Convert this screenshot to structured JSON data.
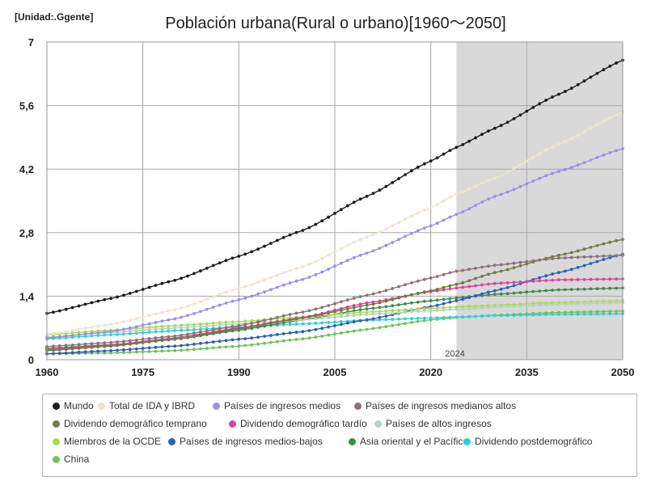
{
  "chart_data": {
    "type": "line",
    "title": "Población urbana(Rural o urbano)[1960〜2050]",
    "unit_label": "[Unidad:.Ggente]",
    "xlabel": "",
    "ylabel": "",
    "xlim": [
      1960,
      2050
    ],
    "ylim": [
      0,
      7
    ],
    "x_ticks": [
      1960,
      1975,
      1990,
      2005,
      2020,
      2035,
      2050
    ],
    "y_ticks": [
      0,
      1.4,
      2.8,
      4.2,
      5.6,
      7
    ],
    "y_tick_labels": [
      "0",
      "1,4",
      "2,8",
      "4,2",
      "5,6",
      "7"
    ],
    "grid": true,
    "projection_start": 2024,
    "projection_label": "2024",
    "legend_position": "bottom",
    "series": [
      {
        "name": "Mundo",
        "color": "#1f1a1c",
        "points": [
          [
            1960,
            1.02
          ],
          [
            1970,
            1.35
          ],
          [
            1980,
            1.75
          ],
          [
            1990,
            2.28
          ],
          [
            2000,
            2.85
          ],
          [
            2010,
            3.6
          ],
          [
            2020,
            4.38
          ],
          [
            2024,
            4.68
          ],
          [
            2030,
            5.1
          ],
          [
            2040,
            5.85
          ],
          [
            2050,
            6.6
          ]
        ]
      },
      {
        "name": "Total de IDA y IBRD",
        "color": "#efe3cf",
        "points": [
          [
            1960,
            0.56
          ],
          [
            1970,
            0.78
          ],
          [
            1980,
            1.1
          ],
          [
            1990,
            1.57
          ],
          [
            2000,
            2.05
          ],
          [
            2010,
            2.7
          ],
          [
            2020,
            3.35
          ],
          [
            2024,
            3.65
          ],
          [
            2030,
            4.0
          ],
          [
            2040,
            4.75
          ],
          [
            2050,
            5.45
          ]
        ]
      },
      {
        "name": "Países de ingresos medios",
        "color": "#9b8fe6",
        "points": [
          [
            1960,
            0.48
          ],
          [
            1970,
            0.62
          ],
          [
            1980,
            0.9
          ],
          [
            1990,
            1.32
          ],
          [
            2000,
            1.77
          ],
          [
            2010,
            2.35
          ],
          [
            2020,
            2.95
          ],
          [
            2024,
            3.2
          ],
          [
            2030,
            3.6
          ],
          [
            2040,
            4.15
          ],
          [
            2050,
            4.65
          ]
        ]
      },
      {
        "name": "Países de ingresos medianos altos",
        "color": "#8c7378",
        "points": [
          [
            1960,
            0.29
          ],
          [
            1970,
            0.38
          ],
          [
            1980,
            0.52
          ],
          [
            1990,
            0.75
          ],
          [
            2000,
            1.05
          ],
          [
            2010,
            1.42
          ],
          [
            2020,
            1.8
          ],
          [
            2024,
            1.95
          ],
          [
            2030,
            2.08
          ],
          [
            2040,
            2.24
          ],
          [
            2050,
            2.3
          ]
        ]
      },
      {
        "name": "Dividendo demográfico temprano",
        "color": "#6f7a45",
        "points": [
          [
            1960,
            0.2
          ],
          [
            1970,
            0.3
          ],
          [
            1980,
            0.45
          ],
          [
            1990,
            0.68
          ],
          [
            2000,
            0.92
          ],
          [
            2010,
            1.2
          ],
          [
            2020,
            1.52
          ],
          [
            2024,
            1.66
          ],
          [
            2030,
            1.92
          ],
          [
            2040,
            2.3
          ],
          [
            2050,
            2.65
          ]
        ]
      },
      {
        "name": "Dividendo demográfico tardío",
        "color": "#e0409c",
        "points": [
          [
            1960,
            0.22
          ],
          [
            1970,
            0.32
          ],
          [
            1980,
            0.48
          ],
          [
            1990,
            0.7
          ],
          [
            2000,
            0.93
          ],
          [
            2010,
            1.25
          ],
          [
            2020,
            1.5
          ],
          [
            2024,
            1.58
          ],
          [
            2030,
            1.68
          ],
          [
            2040,
            1.76
          ],
          [
            2050,
            1.78
          ]
        ]
      },
      {
        "name": "Países de altos ingresos",
        "color": "#b9cfc4",
        "points": [
          [
            1960,
            0.5
          ],
          [
            1970,
            0.6
          ],
          [
            1980,
            0.7
          ],
          [
            1990,
            0.79
          ],
          [
            2000,
            0.88
          ],
          [
            2010,
            1.0
          ],
          [
            2020,
            1.08
          ],
          [
            2024,
            1.11
          ],
          [
            2030,
            1.16
          ],
          [
            2040,
            1.22
          ],
          [
            2050,
            1.26
          ]
        ]
      },
      {
        "name": "Miembros de la OCDE",
        "color": "#a8dc4c",
        "points": [
          [
            1960,
            0.55
          ],
          [
            1970,
            0.65
          ],
          [
            1980,
            0.75
          ],
          [
            1990,
            0.84
          ],
          [
            2000,
            0.94
          ],
          [
            2010,
            1.05
          ],
          [
            2020,
            1.13
          ],
          [
            2024,
            1.16
          ],
          [
            2030,
            1.2
          ],
          [
            2040,
            1.26
          ],
          [
            2050,
            1.3
          ]
        ]
      },
      {
        "name": "Países de ingresos medios-bajos",
        "color": "#2f5fb0",
        "points": [
          [
            1960,
            0.13
          ],
          [
            1970,
            0.2
          ],
          [
            1980,
            0.3
          ],
          [
            1990,
            0.45
          ],
          [
            2000,
            0.62
          ],
          [
            2010,
            0.88
          ],
          [
            2020,
            1.17
          ],
          [
            2024,
            1.3
          ],
          [
            2030,
            1.52
          ],
          [
            2040,
            1.92
          ],
          [
            2050,
            2.32
          ]
        ]
      },
      {
        "name": "Asia oriental y el Pacífico",
        "color": "#3f8a4e",
        "points": [
          [
            1960,
            0.25
          ],
          [
            1970,
            0.33
          ],
          [
            1980,
            0.45
          ],
          [
            1990,
            0.65
          ],
          [
            2000,
            0.88
          ],
          [
            2010,
            1.12
          ],
          [
            2020,
            1.3
          ],
          [
            2024,
            1.36
          ],
          [
            2030,
            1.44
          ],
          [
            2040,
            1.54
          ],
          [
            2050,
            1.58
          ]
        ]
      },
      {
        "name": "Dividendo postdemográfico",
        "color": "#2fd0d0",
        "points": [
          [
            1960,
            0.46
          ],
          [
            1970,
            0.55
          ],
          [
            1980,
            0.64
          ],
          [
            1990,
            0.72
          ],
          [
            2000,
            0.79
          ],
          [
            2010,
            0.87
          ],
          [
            2020,
            0.92
          ],
          [
            2024,
            0.94
          ],
          [
            2030,
            0.97
          ],
          [
            2040,
            1.0
          ],
          [
            2050,
            1.01
          ]
        ]
      },
      {
        "name": "China",
        "color": "#6fc25a",
        "points": [
          [
            1960,
            0.13
          ],
          [
            1970,
            0.15
          ],
          [
            1980,
            0.2
          ],
          [
            1990,
            0.3
          ],
          [
            2000,
            0.46
          ],
          [
            2010,
            0.67
          ],
          [
            2020,
            0.88
          ],
          [
            2024,
            0.93
          ],
          [
            2030,
            0.98
          ],
          [
            2040,
            1.04
          ],
          [
            2050,
            1.07
          ]
        ]
      }
    ]
  }
}
